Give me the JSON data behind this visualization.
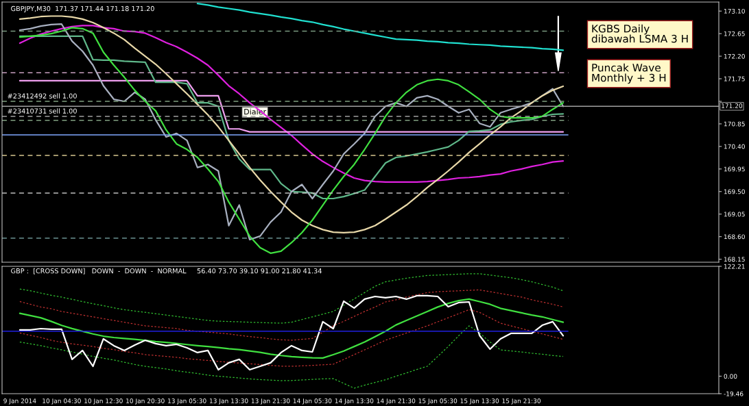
{
  "chart_data": [
    {
      "type": "line",
      "title": "GBPJPY,M30  171.37 171.44 171.18 171.20",
      "tick_labels": "y",
      "categories": [
        null,
        null,
        null,
        null,
        null,
        null,
        null,
        null,
        null,
        null,
        null,
        null,
        null,
        null,
        null,
        null,
        null,
        null,
        null,
        null,
        null,
        null,
        null,
        null,
        null,
        null,
        null,
        null,
        null,
        null,
        null,
        null,
        null,
        null,
        null,
        null,
        null,
        null,
        null,
        null,
        null,
        null,
        null,
        null,
        null,
        null,
        null,
        null,
        null,
        null,
        null,
        null,
        null
      ],
      "ylim": [
        168.09,
        173.28
      ],
      "yticks": [
        {
          "value": 168.15,
          "label": "168.15"
        },
        {
          "value": 168.6,
          "label": "168.60"
        },
        {
          "value": 169.05,
          "label": "169.05"
        },
        {
          "value": 169.5,
          "label": "169.50"
        },
        {
          "value": 169.95,
          "label": "169.95"
        },
        {
          "value": 170.4,
          "label": "170.40"
        },
        {
          "value": 170.85,
          "label": "170.85"
        },
        {
          "value": 171.3,
          "label": null
        },
        {
          "value": 171.75,
          "label": "171.75"
        },
        {
          "value": 172.2,
          "label": "172.20"
        },
        {
          "value": 172.65,
          "label": "172.65"
        },
        {
          "value": 173.1,
          "label": "173.10"
        }
      ],
      "series": [
        {
          "color": "#20e0d0",
          "values": [
            null,
            null,
            null,
            null,
            null,
            null,
            null,
            null,
            null,
            null,
            null,
            null,
            null,
            null,
            null,
            null,
            null,
            173.25,
            173.22,
            173.18,
            173.15,
            173.12,
            173.08,
            173.05,
            173.02,
            172.98,
            172.95,
            172.91,
            172.88,
            172.83,
            172.79,
            172.74,
            172.7,
            172.66,
            172.62,
            172.58,
            172.54,
            172.53,
            172.52,
            172.5,
            172.49,
            172.47,
            172.46,
            172.44,
            172.43,
            172.42,
            172.4,
            172.39,
            172.38,
            172.37,
            172.35,
            172.34,
            172.32
          ]
        },
        {
          "color": "#e020e0",
          "values": [
            172.46,
            172.56,
            172.64,
            172.7,
            172.75,
            172.79,
            172.81,
            172.81,
            172.77,
            172.75,
            172.7,
            172.69,
            172.66,
            172.57,
            172.47,
            172.39,
            172.28,
            172.16,
            172.02,
            171.82,
            171.61,
            171.45,
            171.27,
            171.11,
            170.94,
            170.78,
            170.62,
            170.43,
            170.25,
            170.1,
            169.98,
            169.87,
            169.77,
            169.72,
            169.7,
            169.69,
            169.69,
            169.69,
            169.69,
            169.7,
            169.72,
            169.74,
            169.77,
            169.78,
            169.8,
            169.83,
            169.85,
            169.91,
            169.95,
            170.0,
            170.04,
            170.09,
            170.11
          ]
        },
        {
          "color": "#f0a0f0",
          "values": [
            171.71,
            171.71,
            171.71,
            171.71,
            171.71,
            171.71,
            171.71,
            171.71,
            171.71,
            171.71,
            171.71,
            171.71,
            171.71,
            171.71,
            171.71,
            171.71,
            171.71,
            171.41,
            171.41,
            171.41,
            170.75,
            170.75,
            170.69,
            170.69,
            170.69,
            170.69,
            170.69,
            170.69,
            170.69,
            170.69,
            170.69,
            170.69,
            170.69,
            170.69,
            170.69,
            170.69,
            170.69,
            170.69,
            170.69,
            170.69,
            170.69,
            170.69,
            170.69,
            170.69,
            170.69,
            170.69,
            170.69,
            170.69,
            170.69,
            170.69,
            170.69,
            170.69,
            170.69
          ]
        },
        {
          "color": "#5fb88a",
          "values": [
            172.6,
            172.6,
            172.6,
            172.6,
            172.6,
            172.6,
            172.6,
            172.13,
            172.12,
            172.12,
            172.1,
            172.09,
            172.08,
            171.68,
            171.68,
            171.68,
            171.65,
            171.27,
            171.27,
            171.2,
            170.52,
            170.15,
            169.94,
            169.94,
            169.94,
            169.66,
            169.5,
            169.49,
            169.47,
            169.36,
            169.36,
            169.4,
            169.46,
            169.53,
            169.8,
            170.07,
            170.18,
            170.21,
            170.25,
            170.29,
            170.34,
            170.39,
            170.52,
            170.7,
            170.71,
            170.73,
            170.84,
            170.89,
            170.92,
            170.94,
            171.0,
            171.04,
            171.05
          ]
        },
        {
          "color": "#a8b0c0",
          "values": [
            172.72,
            172.75,
            172.8,
            172.83,
            172.84,
            172.5,
            172.3,
            172.02,
            171.61,
            171.34,
            171.3,
            171.48,
            171.34,
            170.93,
            170.59,
            170.66,
            170.52,
            169.98,
            170.04,
            169.91,
            168.82,
            169.23,
            168.54,
            168.61,
            168.89,
            169.09,
            169.5,
            169.64,
            169.36,
            169.64,
            169.91,
            170.25,
            170.45,
            170.66,
            171.0,
            171.2,
            171.27,
            171.2,
            171.37,
            171.41,
            171.34,
            171.2,
            171.07,
            171.14,
            170.86,
            170.79,
            171.07,
            171.14,
            171.2,
            171.27,
            171.41,
            171.55,
            171.2
          ]
        },
        {
          "color": "#e8d8a8",
          "values": [
            172.94,
            172.96,
            172.99,
            173.0,
            173.0,
            172.98,
            172.94,
            172.87,
            172.77,
            172.66,
            172.53,
            172.36,
            172.2,
            172.04,
            171.85,
            171.65,
            171.45,
            171.24,
            171.03,
            170.79,
            170.52,
            170.25,
            169.98,
            169.73,
            169.5,
            169.29,
            169.09,
            168.93,
            168.82,
            168.74,
            168.69,
            168.68,
            168.69,
            168.74,
            168.82,
            168.95,
            169.09,
            169.23,
            169.4,
            169.58,
            169.74,
            169.91,
            170.09,
            170.28,
            170.45,
            170.63,
            170.79,
            170.97,
            171.11,
            171.27,
            171.41,
            171.52,
            171.6
          ]
        },
        {
          "color": "#40e040",
          "values": [
            172.58,
            172.6,
            172.62,
            172.65,
            172.7,
            172.77,
            172.75,
            172.66,
            172.28,
            172.02,
            171.78,
            171.52,
            171.3,
            171.11,
            170.73,
            170.45,
            170.34,
            170.18,
            169.95,
            169.7,
            169.29,
            168.95,
            168.61,
            168.38,
            168.27,
            168.31,
            168.48,
            168.68,
            168.93,
            169.23,
            169.53,
            169.8,
            170.04,
            170.34,
            170.66,
            171.0,
            171.27,
            171.48,
            171.63,
            171.71,
            171.74,
            171.71,
            171.63,
            171.49,
            171.34,
            171.14,
            171.0,
            170.97,
            170.97,
            170.97,
            171.0,
            171.14,
            171.27
          ]
        }
      ],
      "ref_lines": [
        {
          "axis": "y",
          "value": 172.7,
          "color": "#7a9a80",
          "line_style": "dashed"
        },
        {
          "axis": "y",
          "value": 171.87,
          "color": "#c8a0c0",
          "line_style": "dashed"
        },
        {
          "axis": "y",
          "value": 171.3,
          "color": "#80a080",
          "line_style": "dashed",
          "label": "#23412492 sell 1.00"
        },
        {
          "axis": "y",
          "value": 171.0,
          "color": "#a0a0a0",
          "line_style": "dashed",
          "label": "#23410731 sell 1.00"
        },
        {
          "axis": "y",
          "value": 170.92,
          "color": "#80a080",
          "line_style": "dashed"
        },
        {
          "axis": "y",
          "value": 170.22,
          "color": "#d8c890",
          "line_style": "dashed"
        },
        {
          "axis": "y",
          "value": 169.47,
          "color": "#c0c0c0",
          "line_style": "dashed"
        },
        {
          "axis": "y",
          "value": 168.57,
          "color": "#80b0b0",
          "line_style": "dashed"
        },
        {
          "axis": "y",
          "value": 170.63,
          "color": "#80a8ff",
          "line_style": "solid"
        },
        {
          "axis": "y",
          "value": 171.2,
          "color": "#a0a0a0",
          "line_style": "solid",
          "label": "171.20"
        }
      ],
      "annotations": [
        "Dialer",
        "KGBS Daily\ndibawah LSMA 3 H",
        "Puncak Wave\nMonthly + 3 H"
      ]
    },
    {
      "type": "line",
      "title": "GBP :  [CROSS DOWN]   DOWN  -  DOWN  -  NORMAL     56.40 73.70 39.10 91.00 21.80 41.34",
      "categories": [
        "9 Jan 2014",
        null,
        null,
        null,
        "10 Jan 04:30",
        null,
        null,
        null,
        "10 Jan 12:30",
        null,
        null,
        null,
        "10 Jan 20:30",
        null,
        null,
        null,
        "13 Jan 05:30",
        null,
        null,
        null,
        "13 Jan 13:30",
        null,
        null,
        null,
        "13 Jan 21:30",
        null,
        null,
        null,
        "14 Jan 05:30",
        null,
        null,
        null,
        "14 Jan 13:30",
        null,
        null,
        null,
        "14 Jan 21:30",
        null,
        null,
        null,
        "15 Jan 05:30",
        null,
        null,
        null,
        "15 Jan 13:30",
        null,
        null,
        null,
        "15 Jan 21:30",
        null,
        null,
        null,
        null
      ],
      "ylim": [
        -19.46,
        122.21
      ],
      "yticks": [
        -19.46,
        {
          "value": 0,
          "label": "0.00"
        },
        122.21
      ],
      "series": [
        {
          "color": "#30c030",
          "line_style": "dotted",
          "values": [
            97,
            95,
            92.5,
            90,
            88,
            85.5,
            83,
            80.5,
            78.5,
            76,
            74,
            72.5,
            71,
            69.5,
            68,
            66.5,
            65,
            63.5,
            62,
            61.2,
            60.8,
            60.5,
            60,
            59.7,
            59.3,
            59,
            60,
            63,
            66,
            69,
            72,
            79,
            86,
            93,
            100,
            105,
            107,
            109,
            110.5,
            112,
            112.5,
            113,
            113.5,
            114,
            114,
            112.5,
            111,
            109.5,
            107.5,
            105,
            102,
            99,
            95
          ]
        },
        {
          "color": "#c03030",
          "line_style": "dotted",
          "values": [
            83,
            80,
            77,
            75,
            72,
            70,
            68,
            66,
            64,
            62,
            60,
            58,
            56,
            55,
            54,
            53,
            51,
            50,
            49,
            48,
            47,
            45.5,
            44,
            43,
            41.5,
            40.5,
            40,
            41,
            42,
            49,
            56,
            61,
            66.5,
            72,
            77,
            82.6,
            85,
            88,
            90.5,
            93,
            94,
            94.5,
            95,
            95.5,
            96,
            94,
            92,
            90,
            88,
            85,
            82.5,
            80,
            77
          ]
        },
        {
          "color": "#c03030",
          "line_style": "dotted",
          "values": [
            48,
            45.5,
            43,
            40,
            37.7,
            36,
            34.5,
            33,
            31,
            29.5,
            27.5,
            26,
            24,
            23,
            22,
            21,
            19.5,
            18.5,
            17.5,
            16.4,
            15.5,
            14.6,
            13.8,
            13,
            12,
            11.2,
            11,
            11.5,
            12,
            12.7,
            13.3,
            18.6,
            24,
            29.3,
            34.6,
            40,
            44,
            48,
            52,
            56,
            60.5,
            65,
            69.5,
            74,
            71,
            65,
            59,
            56,
            53,
            50,
            47,
            44,
            41
          ]
        },
        {
          "color": "#30c030",
          "line_style": "dotted",
          "values": [
            38,
            36,
            34,
            31.5,
            29.3,
            27,
            24.5,
            22,
            20,
            18,
            15.5,
            13,
            11,
            9.5,
            8,
            6,
            4.5,
            3,
            1.2,
            0,
            -1,
            -2,
            -3,
            -3.8,
            -4.4,
            -5,
            -4.8,
            -4.2,
            -3.6,
            -3,
            -2.7,
            -8,
            -13.3,
            -10,
            -7,
            -4,
            0,
            3.5,
            7.5,
            11,
            22,
            33,
            45,
            56,
            48,
            38,
            29.3,
            28,
            27,
            25.5,
            24.5,
            23,
            22
          ]
        },
        {
          "color": "#40e040",
          "line_style": "solid",
          "values": [
            70,
            67.5,
            65,
            61,
            56.5,
            53,
            50,
            47,
            44.5,
            43,
            42,
            41,
            39.8,
            38.5,
            37.5,
            36.5,
            35.2,
            34,
            33,
            31.8,
            30.5,
            29.5,
            28,
            26.5,
            24.5,
            23,
            21.8,
            21,
            20.4,
            20.2,
            24,
            28,
            33,
            38,
            44,
            50,
            57,
            62,
            67,
            72,
            77,
            81,
            84,
            85.7,
            83,
            80,
            75.5,
            73,
            70.5,
            68,
            66,
            63,
            60
          ]
        },
        {
          "color": "#ffffff",
          "line_style": "solid",
          "values": [
            51.4,
            51.4,
            52.9,
            52.2,
            52.2,
            18.7,
            28.6,
            11.0,
            41.5,
            33.9,
            28.6,
            34.7,
            40.0,
            36.2,
            33.9,
            35.4,
            31.6,
            26.3,
            28.6,
            7.2,
            14.9,
            18.7,
            7.2,
            11.0,
            14.9,
            26.3,
            33.9,
            28.6,
            27.0,
            60.6,
            52.9,
            83.4,
            75.8,
            85.7,
            88.7,
            87.2,
            88.7,
            85.7,
            89.5,
            89.5,
            88.7,
            77.3,
            81.9,
            82.6,
            45.3,
            30.1,
            41.5,
            47.6,
            47.6,
            47.6,
            56.7,
            60.6,
            45.0
          ]
        }
      ],
      "ref_lines": [
        {
          "axis": "y",
          "value": 50,
          "color": "#2020e0",
          "line_style": "solid"
        }
      ]
    }
  ]
}
